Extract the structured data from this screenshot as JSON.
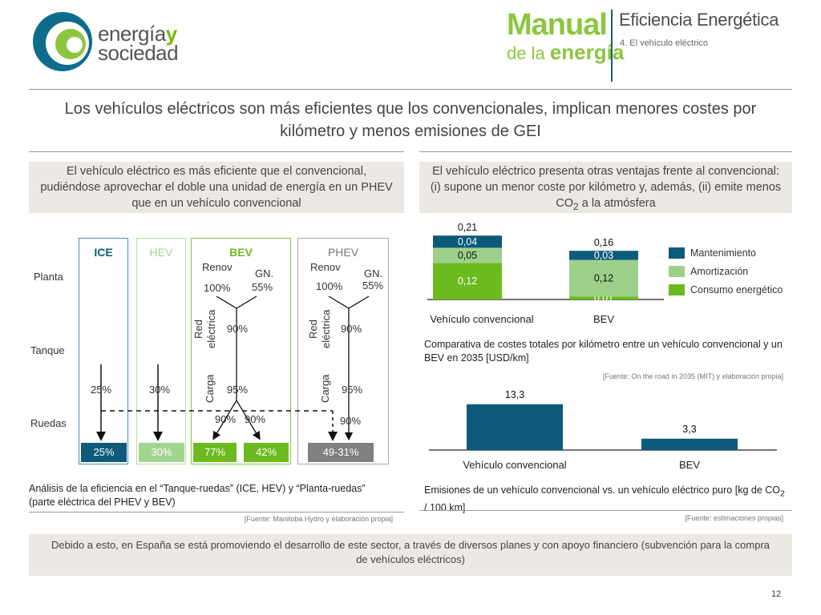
{
  "header": {
    "logo_line1": "energía",
    "logo_y": "y",
    "logo_line2": "sociedad",
    "manual_line1": "Manual",
    "manual_line2_a": "de la ",
    "manual_line2_b": "energía",
    "title": "Eficiencia Energética",
    "subtitle": "4. El vehículo eléctrico"
  },
  "main_title": "Los vehículos eléctricos son más eficientes que los convencionales, implican menores costes por kilómetro y menos emisiones de GEI",
  "left": {
    "box_text": "El vehículo eléctrico es más eficiente que el convencional, pudiéndose aprovechar el doble una unidad de energía en un PHEV que en un vehículo convencional",
    "row_labels": {
      "planta": "Planta",
      "tanque": "Tanque",
      "ruedas": "Ruedas"
    },
    "columns": {
      "ice": "ICE",
      "hev": "HEV",
      "bev": "BEV",
      "phev": "PHEV"
    },
    "bev": {
      "renov": "Renov",
      "renov_pct": "100%",
      "gn": "GN.",
      "gn_pct": "55%",
      "red": "Red",
      "electrica": "eléctrica",
      "red_pct": "90%",
      "carga": "Carga",
      "carga_pct": "95%",
      "split_a": "90%",
      "split_b": "90%"
    },
    "phev": {
      "renov": "Renov",
      "renov_pct": "100%",
      "gn": "GN.",
      "gn_pct": "55%",
      "red": "Red",
      "electrica": "eléctrica",
      "red_pct": "90%",
      "carga": "Carga",
      "carga_pct": "95%",
      "bottom_pct": "90%"
    },
    "ice_pct": "25%",
    "hev_pct": "30%",
    "results": {
      "ice": "25%",
      "hev": "30%",
      "bev_a": "77%",
      "bev_b": "42%",
      "phev": "49-31%"
    },
    "caption": "Análisis de la eficiencia en el “Tanque-ruedas” (ICE, HEV) y “Planta-ruedas” (parte eléctrica del PHEV y BEV)",
    "source": "[Fuente: Manitoba Hydro y elaboración propia]"
  },
  "right": {
    "box_text_1": "El vehículo eléctrico presenta otras ventajas frente al convencional: (i) supone un menor coste por kilómetro y, además, (ii) emite menos CO",
    "box_sub": "2",
    "box_text_2": " a la atmósfera",
    "caption1": "Comparativa de costes totales por kilómetro entre un vehículo convencional y un BEV en 2035 [USD/km]",
    "source1": "[Fuente: On the road in 2035 (MIT) y elaboración propia]",
    "caption2_a": "Emisiones de un vehículo convencional vs. un vehículo eléctrico puro [kg de CO",
    "caption2_sub": "2",
    "caption2_b": " / 100 km]",
    "source2": "[Fuente: estimaciones propias]"
  },
  "footer": {
    "text": "Debido a esto, en España se está promoviendo el desarrollo de este sector, a través de diversos planes y con apoyo financiero (subvención para la compra de vehículos eléctricos)",
    "page": "12"
  },
  "colors": {
    "dark_blue": "#0d5a7a",
    "light_green": "#9dd18b",
    "green": "#6cbb1e",
    "hev_green": "#a3d48f",
    "grey": "#808080"
  },
  "chart_data": [
    {
      "type": "bar",
      "stacked": true,
      "title": "Comparativa de costes totales por kilómetro entre un vehículo convencional y un BEV en 2035 [USD/km]",
      "categories": [
        "Vehículo convencional",
        "BEV"
      ],
      "totals": [
        "0,21",
        "0,16"
      ],
      "series": [
        {
          "name": "Consumo energético",
          "color": "#6cbb1e",
          "values": [
            0.12,
            0.01
          ],
          "labels": [
            "0,12",
            "0,01"
          ]
        },
        {
          "name": "Amortización",
          "color": "#9dd18b",
          "values": [
            0.05,
            0.12
          ],
          "labels": [
            "0,05",
            "0,12"
          ]
        },
        {
          "name": "Mantenimiento",
          "color": "#0d5a7a",
          "values": [
            0.04,
            0.03
          ],
          "labels": [
            "0,04",
            "0,03"
          ]
        }
      ],
      "legend_position": "right"
    },
    {
      "type": "bar",
      "title": "Emisiones de un vehículo convencional vs. un vehículo eléctrico puro [kg de CO2 / 100 km]",
      "categories": [
        "Vehículo convencional",
        "BEV"
      ],
      "values": [
        13.3,
        3.3
      ],
      "labels": [
        "13,3",
        "3,3"
      ],
      "color": "#0d5a7a"
    }
  ]
}
